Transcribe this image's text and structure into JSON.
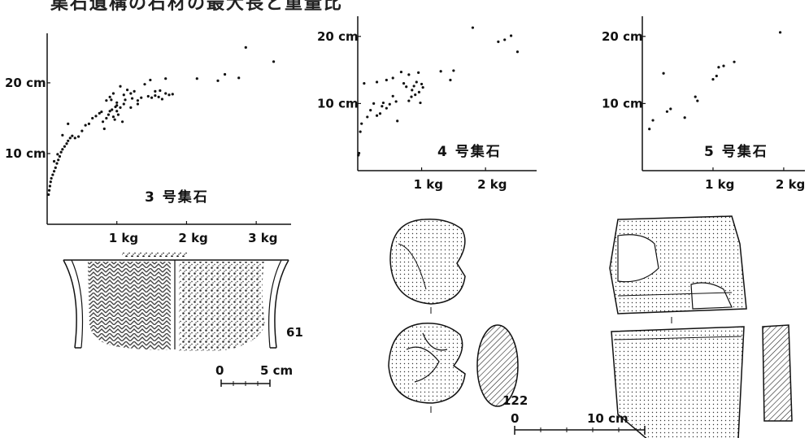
{
  "header": {
    "title": "集石遺構の石材の最大長と重量比"
  },
  "chart_data": [
    {
      "type": "scatter",
      "title": "3 号集石",
      "x_ticks": [
        {
          "v": 1,
          "label": "1 kg"
        },
        {
          "v": 2,
          "label": "2 kg"
        },
        {
          "v": 3,
          "label": "3 kg"
        }
      ],
      "y_ticks": [
        {
          "v": 10,
          "label": "10 cm"
        },
        {
          "v": 20,
          "label": "20 cm"
        }
      ],
      "xlim": [
        0,
        3.5
      ],
      "ylim": [
        0,
        27
      ],
      "points": [
        [
          0.02,
          4.2
        ],
        [
          0.03,
          4.8
        ],
        [
          0.04,
          5.4
        ],
        [
          0.05,
          6.0
        ],
        [
          0.06,
          6.5
        ],
        [
          0.08,
          7.0
        ],
        [
          0.1,
          7.5
        ],
        [
          0.12,
          8.0
        ],
        [
          0.14,
          8.6
        ],
        [
          0.16,
          9.1
        ],
        [
          0.18,
          9.6
        ],
        [
          0.2,
          10.2
        ],
        [
          0.22,
          10.6
        ],
        [
          0.25,
          11.0
        ],
        [
          0.28,
          11.4
        ],
        [
          0.3,
          11.8
        ],
        [
          0.33,
          12.2
        ],
        [
          0.36,
          12.5
        ],
        [
          0.1,
          8.9
        ],
        [
          0.15,
          9.9
        ],
        [
          0.22,
          12.6
        ],
        [
          0.3,
          14.2
        ],
        [
          0.4,
          12.2
        ],
        [
          0.45,
          12.4
        ],
        [
          0.5,
          13.2
        ],
        [
          0.55,
          14.0
        ],
        [
          0.6,
          14.2
        ],
        [
          0.65,
          15.0
        ],
        [
          0.7,
          15.3
        ],
        [
          0.75,
          15.7
        ],
        [
          0.78,
          15.9
        ],
        [
          0.8,
          14.5
        ],
        [
          0.82,
          13.5
        ],
        [
          0.85,
          15.0
        ],
        [
          0.88,
          15.5
        ],
        [
          0.9,
          16.0
        ],
        [
          0.93,
          16.2
        ],
        [
          0.95,
          15.2
        ],
        [
          0.97,
          14.8
        ],
        [
          1.0,
          16.8
        ],
        [
          1.02,
          15.5
        ],
        [
          1.05,
          16.5
        ],
        [
          1.08,
          14.5
        ],
        [
          1.1,
          17.0
        ],
        [
          0.85,
          17.5
        ],
        [
          0.9,
          18.0
        ],
        [
          0.95,
          18.5
        ],
        [
          1.0,
          17.2
        ],
        [
          1.05,
          19.5
        ],
        [
          1.1,
          18.3
        ],
        [
          1.15,
          19.0
        ],
        [
          1.2,
          18.5
        ],
        [
          1.25,
          18.8
        ],
        [
          1.3,
          17.5
        ],
        [
          1.35,
          17.9
        ],
        [
          1.4,
          19.8
        ],
        [
          1.45,
          18.1
        ],
        [
          1.5,
          17.9
        ],
        [
          1.55,
          18.2
        ],
        [
          1.6,
          18.0
        ],
        [
          1.65,
          17.7
        ],
        [
          1.7,
          18.5
        ],
        [
          1.75,
          18.3
        ],
        [
          1.8,
          18.4
        ],
        [
          1.3,
          17.0
        ],
        [
          1.2,
          16.5
        ],
        [
          1.55,
          18.8
        ],
        [
          1.62,
          18.9
        ],
        [
          1.7,
          20.6
        ],
        [
          0.92,
          17.6
        ],
        [
          0.98,
          16.6
        ],
        [
          1.12,
          17.6
        ],
        [
          1.22,
          17.8
        ],
        [
          1.0,
          16.0
        ],
        [
          1.48,
          20.4
        ],
        [
          2.15,
          20.6
        ],
        [
          2.45,
          20.3
        ],
        [
          2.55,
          21.2
        ],
        [
          2.75,
          20.7
        ],
        [
          2.85,
          25.0
        ],
        [
          3.25,
          23.0
        ]
      ]
    },
    {
      "type": "scatter",
      "title": "4 号集石",
      "x_ticks": [
        {
          "v": 1,
          "label": "1 kg"
        },
        {
          "v": 2,
          "label": "2 kg"
        }
      ],
      "y_ticks": [
        {
          "v": 10,
          "label": "10 cm"
        },
        {
          "v": 20,
          "label": "20 cm"
        }
      ],
      "xlim": [
        0,
        2.8
      ],
      "ylim": [
        0,
        23
      ],
      "points": [
        [
          0.01,
          2.3
        ],
        [
          0.02,
          2.6
        ],
        [
          0.04,
          5.8
        ],
        [
          0.06,
          7.0
        ],
        [
          0.1,
          13.0
        ],
        [
          0.15,
          8.0
        ],
        [
          0.2,
          9.0
        ],
        [
          0.25,
          10.0
        ],
        [
          0.3,
          8.2
        ],
        [
          0.35,
          8.5
        ],
        [
          0.38,
          9.6
        ],
        [
          0.4,
          10.1
        ],
        [
          0.45,
          9.3
        ],
        [
          0.5,
          9.9
        ],
        [
          0.55,
          11.1
        ],
        [
          0.6,
          10.3
        ],
        [
          0.45,
          13.5
        ],
        [
          0.55,
          13.8
        ],
        [
          0.62,
          7.4
        ],
        [
          0.68,
          14.7
        ],
        [
          0.72,
          13.0
        ],
        [
          0.76,
          12.5
        ],
        [
          0.8,
          10.4
        ],
        [
          0.84,
          11.0
        ],
        [
          0.88,
          12.6
        ],
        [
          0.92,
          13.2
        ],
        [
          0.96,
          11.7
        ],
        [
          0.8,
          14.3
        ],
        [
          0.85,
          12.0
        ],
        [
          0.9,
          11.3
        ],
        [
          0.95,
          14.6
        ],
        [
          1.0,
          12.9
        ],
        [
          1.02,
          12.4
        ],
        [
          0.98,
          10.1
        ],
        [
          1.3,
          14.8
        ],
        [
          1.45,
          13.5
        ],
        [
          1.5,
          14.9
        ],
        [
          1.8,
          21.3
        ],
        [
          2.2,
          19.2
        ],
        [
          2.3,
          19.5
        ],
        [
          2.4,
          20.1
        ],
        [
          2.5,
          17.7
        ],
        [
          0.3,
          13.2
        ]
      ]
    },
    {
      "type": "scatter",
      "title": "5 号集石",
      "x_ticks": [
        {
          "v": 1,
          "label": "1 kg"
        },
        {
          "v": 2,
          "label": "2 kg"
        }
      ],
      "y_ticks": [
        {
          "v": 10,
          "label": "10 cm"
        },
        {
          "v": 20,
          "label": "20 cm"
        }
      ],
      "xlim": [
        0,
        2.3
      ],
      "ylim": [
        0,
        23
      ],
      "points": [
        [
          0.1,
          6.2
        ],
        [
          0.15,
          7.5
        ],
        [
          0.3,
          14.5
        ],
        [
          0.35,
          8.8
        ],
        [
          0.4,
          9.2
        ],
        [
          0.6,
          7.9
        ],
        [
          0.75,
          11.0
        ],
        [
          0.78,
          10.4
        ],
        [
          1.0,
          13.6
        ],
        [
          1.05,
          14.1
        ],
        [
          1.08,
          15.4
        ],
        [
          1.15,
          15.6
        ],
        [
          1.3,
          16.2
        ],
        [
          1.95,
          20.6
        ]
      ]
    }
  ],
  "figures": {
    "pottery_number": "61",
    "pottery_scale": {
      "zero": "0",
      "end": "5 cm"
    },
    "stone_number": "122",
    "stone_scale": {
      "zero": "0",
      "end": "10 cm"
    }
  }
}
